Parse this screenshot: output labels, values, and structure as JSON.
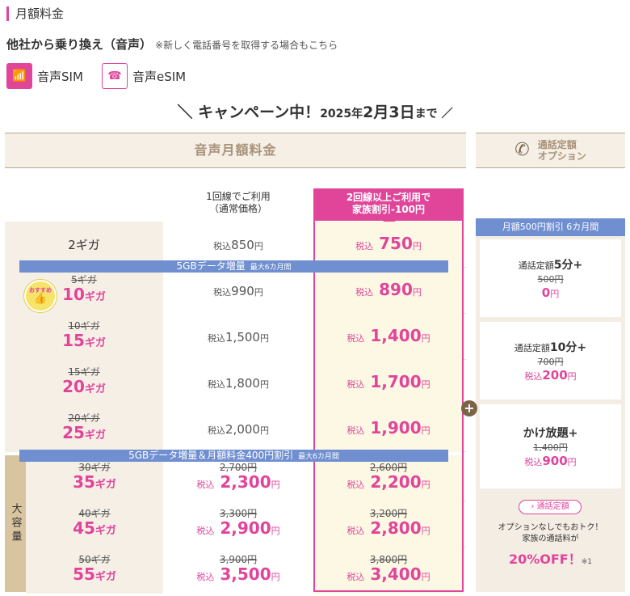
{
  "section_title": "月額料金",
  "heading": {
    "main": "他社から乗り換え（音声）",
    "note": "※新しく電話番号を取得する場合もこちら"
  },
  "sim_types": [
    {
      "label": "音声SIM",
      "icon": "sim-icon"
    },
    {
      "label": "音声eSIM",
      "icon": "esim-icon"
    }
  ],
  "campaign": {
    "left": "＼ キャンペーン中！",
    "year": "2025年",
    "md": "2月3日",
    "suffix": "まで ／"
  },
  "table": {
    "header": "音声月額料金",
    "option_header": [
      "通話定額",
      "オプション"
    ],
    "col_normal": [
      "1回線でご利用",
      "（通常価格）"
    ],
    "col_family": [
      "2回線以上ご利用で",
      "家族割引-100円"
    ],
    "banner1": {
      "text": "5GBデータ増量",
      "note": "最大6カ月間"
    },
    "banner2": {
      "text": "5GBデータ増量＆月額料金400円割引",
      "note": "最大6カ月間"
    },
    "badge": {
      "top": "おすすめ",
      "icon": "thumbs-up-icon"
    },
    "big_capacity_label": "大容量",
    "tax_prefix": "税込",
    "yen": "円",
    "giga": "ギガ",
    "rows": [
      {
        "plan": "2ギガ",
        "old_plan": "",
        "gb": "",
        "normal_old": "",
        "normal": "850",
        "family_old": "",
        "family": "750"
      },
      {
        "plan": "",
        "old_plan": "5ギガ",
        "gb": "10",
        "normal_old": "",
        "normal": "990",
        "family_old": "",
        "family": "890"
      },
      {
        "plan": "",
        "old_plan": "10ギガ",
        "gb": "15",
        "normal_old": "",
        "normal": "1,500",
        "family_old": "",
        "family": "1,400"
      },
      {
        "plan": "",
        "old_plan": "15ギガ",
        "gb": "20",
        "normal_old": "",
        "normal": "1,800",
        "family_old": "",
        "family": "1,700"
      },
      {
        "plan": "",
        "old_plan": "20ギガ",
        "gb": "25",
        "normal_old": "",
        "normal": "2,000",
        "family_old": "",
        "family": "1,900"
      },
      {
        "plan": "",
        "old_plan": "30ギガ",
        "gb": "35",
        "normal_old": "2,700円",
        "normal": "2,300",
        "family_old": "2,600円",
        "family": "2,200"
      },
      {
        "plan": "",
        "old_plan": "40ギガ",
        "gb": "45",
        "normal_old": "3,300円",
        "normal": "2,900",
        "family_old": "3,200円",
        "family": "2,800"
      },
      {
        "plan": "",
        "old_plan": "50ギガ",
        "gb": "55",
        "normal_old": "3,900円",
        "normal": "3,500",
        "family_old": "3,800円",
        "family": "3,400"
      }
    ]
  },
  "options": {
    "banner": "月額500円割引 6カ月間",
    "plus": "+",
    "cards": [
      {
        "prefix": "通話定額",
        "name": "5分+",
        "old": "500円",
        "new_prefix": "",
        "new": "0",
        "yen": "円"
      },
      {
        "prefix": "通話定額",
        "name": "10分+",
        "old": "700円",
        "new_prefix": "税込",
        "new": "200",
        "yen": "円"
      },
      {
        "prefix": "",
        "name": "かけ放題+",
        "old": "1,400円",
        "new_prefix": "税込",
        "new": "900",
        "yen": "円"
      }
    ],
    "link": "› 通話定額",
    "note": [
      "オプションなしでもおトク！",
      "家族の通話料が"
    ],
    "off": "20%OFF！",
    "off_note": "※1"
  },
  "colors": {
    "accent": "#e0459a",
    "banner": "#6f8fd0",
    "beige": "#f6efe6",
    "family_bg": "#fdf8e4"
  }
}
